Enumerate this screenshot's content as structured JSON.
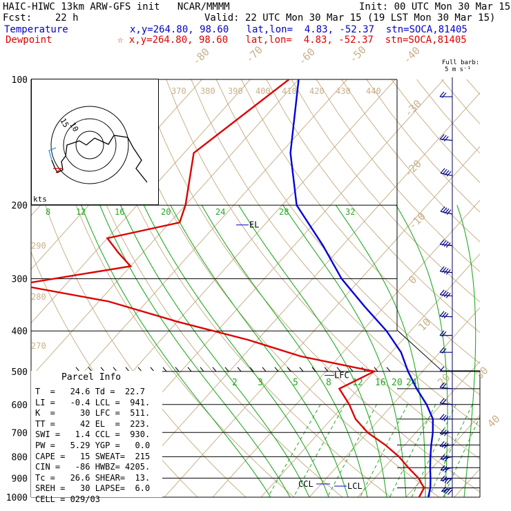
{
  "header": {
    "line1_left": "HAIC-HIWC 13km ARW-GFS init   NCAR/MMMM",
    "line1_right": "Init: 00 UTC Mon 30 Mar 15",
    "line2_left": "Fcst:    22 h",
    "line2_right": "Valid: 22 UTC Mon 30 Mar 15 (19 LST Mon 30 Mar 15)",
    "temp_label": "Temperature",
    "temp_info": "x,y=264.80, 98.60   lat,lon=  4.83, -52.37  stn=SOCA,81405",
    "dew_label": "Dewpoint",
    "dew_info": "☆ x,y=264.80, 98.60   lat,lon=  4.83, -52.37  stn=SOCA,81405"
  },
  "barb_legend": {
    "line1": "Full barb:",
    "line2": "5 m s⁻¹"
  },
  "parcel_info": {
    "title": "Parcel Info",
    "rows": [
      "T  =   24.6 Td =  22.7",
      "LI =   -0.4 LCL =  941.",
      "K  =     30 LFC =  511.",
      "TT =     42 EL  =  223.",
      "SWI =   1.4 CCL =  930.",
      "PW =   5.29 YGP =   0.0",
      "CAPE =   15 SWEAT=  215",
      "CIN =   -86 HWBZ= 4205.",
      "Tc =   26.6 SHEAR=  13.",
      "SREH =   30 LAPSE=  6.0",
      "CELL = 029/03"
    ]
  },
  "hodograph": {
    "units_label": "kts",
    "ring_labels": [
      "15",
      "10"
    ]
  },
  "chart_data": {
    "type": "line",
    "title": "",
    "pressure_levels": [
      100,
      200,
      300,
      400,
      500,
      600,
      700,
      800,
      900,
      1000
    ],
    "pressure_tick_labels": [
      "100",
      "200",
      "300",
      "400",
      "500",
      "600",
      "700",
      "800",
      "900",
      "1000"
    ],
    "isotherm_labels": [
      "-80",
      "-70",
      "-60",
      "-50",
      "-40",
      "-30",
      "-20",
      "-10",
      "0",
      "10",
      "20",
      "30",
      "40"
    ],
    "dry_adiabat_labels": [
      "370",
      "380",
      "390",
      "400",
      "410",
      "420",
      "430",
      "440",
      "290",
      "280",
      "270"
    ],
    "moist_adiabat_labels": [
      "8",
      "12",
      "16",
      "20",
      "24",
      "28",
      "32"
    ],
    "mixing_ratio_labels": [
      "2",
      "3",
      "5",
      "8",
      "12",
      "16",
      "20",
      "24"
    ],
    "level_labels": {
      "el": "EL",
      "lfc": "LFC",
      "ccl": "CCL",
      "lcl": "LCL"
    },
    "series": [
      {
        "name": "Temperature",
        "color": "#0000dd",
        "points": [
          [
            100,
            -80
          ],
          [
            150,
            -68
          ],
          [
            200,
            -57
          ],
          [
            250,
            -44
          ],
          [
            300,
            -34
          ],
          [
            350,
            -24
          ],
          [
            400,
            -15
          ],
          [
            450,
            -8
          ],
          [
            500,
            -3
          ],
          [
            550,
            2
          ],
          [
            600,
            7
          ],
          [
            650,
            11
          ],
          [
            700,
            13.5
          ],
          [
            750,
            15.5
          ],
          [
            800,
            17.5
          ],
          [
            850,
            19.5
          ],
          [
            900,
            21.5
          ],
          [
            950,
            23.3
          ],
          [
            1000,
            24.6
          ]
        ]
      },
      {
        "name": "Dewpoint",
        "color": "#dd0000",
        "points": [
          [
            100,
            -82
          ],
          [
            150,
            -88
          ],
          [
            200,
            -80
          ],
          [
            220,
            -78
          ],
          [
            240,
            -90
          ],
          [
            260,
            -85
          ],
          [
            280,
            -80
          ],
          [
            310,
            -100
          ],
          [
            340,
            -78
          ],
          [
            380,
            -60
          ],
          [
            420,
            -42
          ],
          [
            460,
            -28
          ],
          [
            500,
            -10
          ],
          [
            550,
            -14
          ],
          [
            600,
            -9
          ],
          [
            650,
            -5
          ],
          [
            700,
            0
          ],
          [
            750,
            6
          ],
          [
            800,
            11
          ],
          [
            850,
            15
          ],
          [
            900,
            19
          ],
          [
            950,
            22
          ],
          [
            1000,
            22.7
          ]
        ]
      }
    ],
    "wind_barbs": [
      {
        "p": 110,
        "dir": 90,
        "spd": 10
      },
      {
        "p": 140,
        "dir": 100,
        "spd": 15
      },
      {
        "p": 170,
        "dir": 110,
        "spd": 20
      },
      {
        "p": 210,
        "dir": 110,
        "spd": 20
      },
      {
        "p": 250,
        "dir": 100,
        "spd": 20
      },
      {
        "p": 290,
        "dir": 100,
        "spd": 20
      },
      {
        "p": 330,
        "dir": 100,
        "spd": 20
      },
      {
        "p": 370,
        "dir": 95,
        "spd": 15
      },
      {
        "p": 410,
        "dir": 90,
        "spd": 10
      },
      {
        "p": 450,
        "dir": 90,
        "spd": 10
      },
      {
        "p": 500,
        "dir": 90,
        "spd": 5
      },
      {
        "p": 550,
        "dir": 100,
        "spd": 10
      },
      {
        "p": 600,
        "dir": 100,
        "spd": 10
      },
      {
        "p": 650,
        "dir": 90,
        "spd": 15
      },
      {
        "p": 700,
        "dir": 80,
        "spd": 15
      },
      {
        "p": 750,
        "dir": 80,
        "spd": 15
      },
      {
        "p": 800,
        "dir": 70,
        "spd": 15
      },
      {
        "p": 850,
        "dir": 70,
        "spd": 15
      },
      {
        "p": 900,
        "dir": 70,
        "spd": 20
      },
      {
        "p": 950,
        "dir": 60,
        "spd": 20
      }
    ]
  }
}
